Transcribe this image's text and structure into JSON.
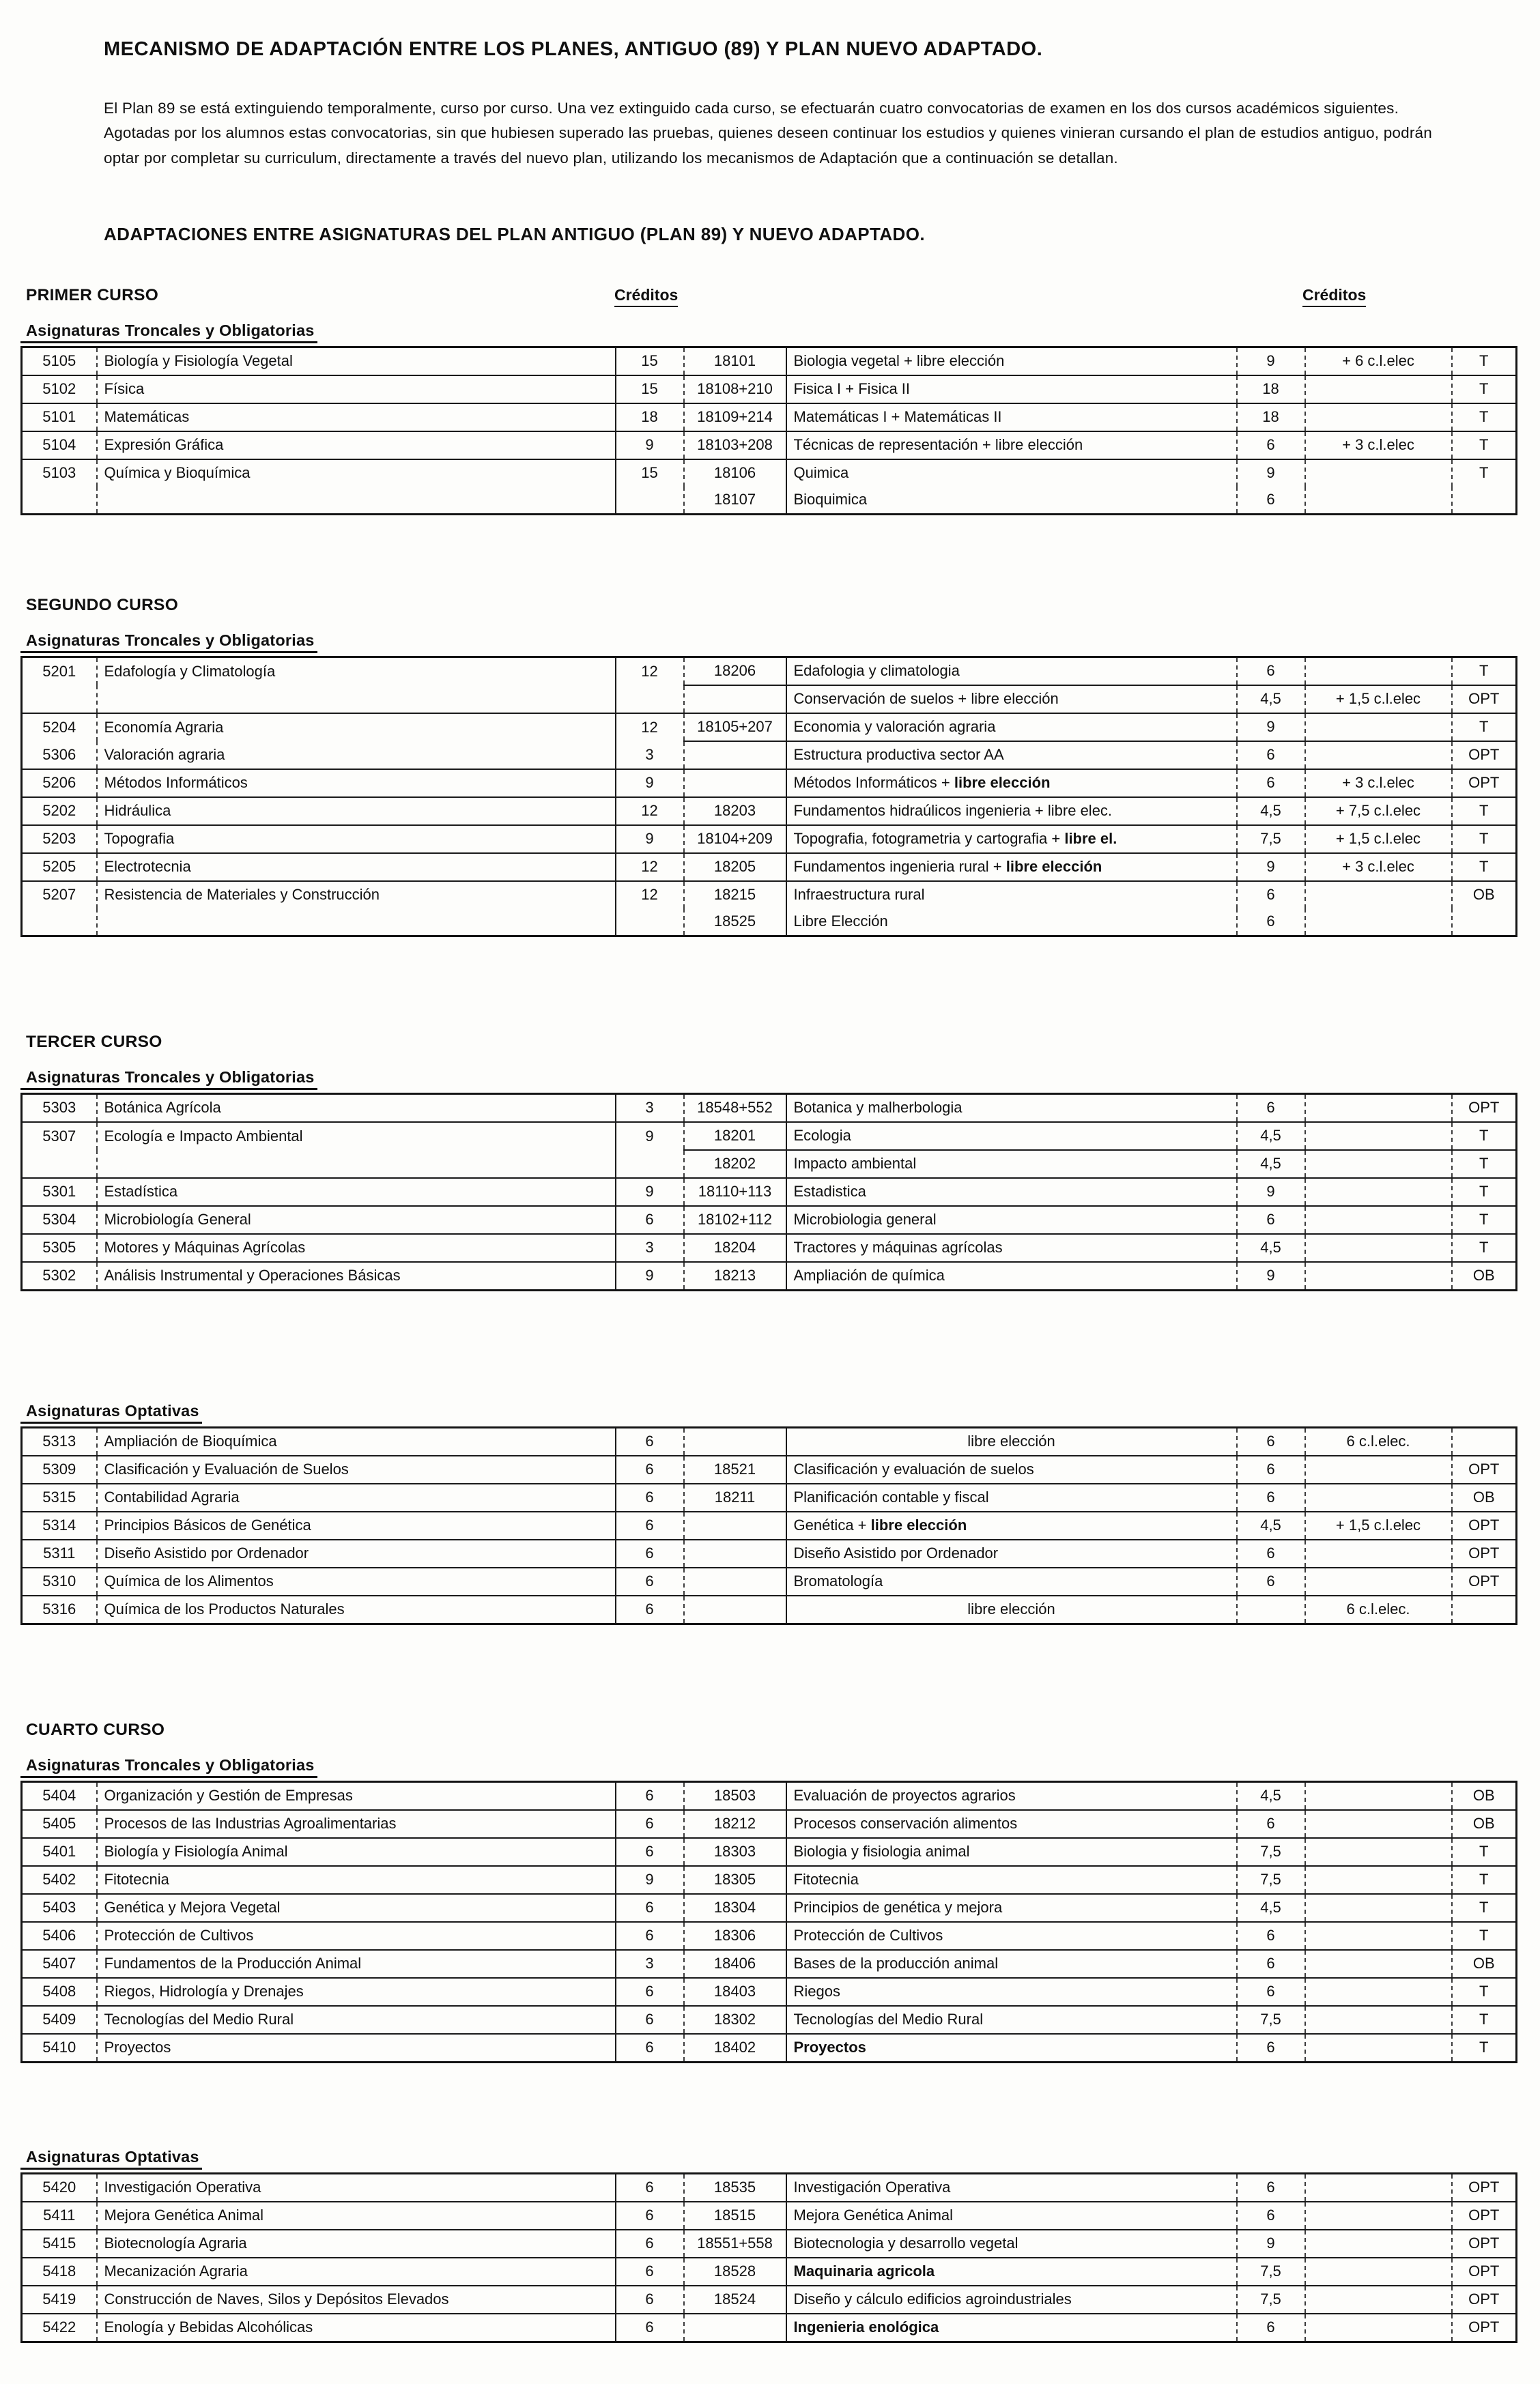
{
  "title": "MECANISMO DE ADAPTACIÓN ENTRE LOS PLANES, ANTIGUO (89) Y PLAN NUEVO ADAPTADO.",
  "intro": "El Plan 89 se está extinguiendo temporalmente, curso por curso. Una vez extinguido cada curso, se efectuarán cuatro convocatorias de examen en los dos cursos académicos siguientes. Agotadas por los alumnos estas convocatorias, sin que hubiesen superado las pruebas, quienes deseen continuar los estudios y quienes vinieran cursando el plan de estudios antiguo, podrán optar  por completar su curriculum, directamente a través del nuevo plan, utilizando los mecanismos de Adaptación que a continuación se detallan.",
  "subtitle": "ADAPTACIONES ENTRE ASIGNATURAS DEL PLAN ANTIGUO (PLAN 89) Y NUEVO ADAPTADO.",
  "credits_header": "Créditos",
  "sections": [
    {
      "heading": "PRIMER CURSO",
      "subheading": "Asignaturas Troncales y Obligatorias",
      "show_credits": true,
      "margin_top": 0,
      "rows": [
        {
          "c": "5105",
          "o": "Biología y Fisiología Vegetal",
          "ocr": "15",
          "nc": "18101",
          "n": "Biologia vegetal  + libre elección",
          "ncr": "9",
          "ex": "+ 6 c.l.elec",
          "t": "T"
        },
        {
          "c": "5102",
          "o": "Física",
          "ocr": "15",
          "nc": "18108+210",
          "n": "Fisica I  +  Fisica II",
          "ncr": "18",
          "ex": "",
          "t": "T"
        },
        {
          "c": "5101",
          "o": "Matemáticas",
          "ocr": "18",
          "nc": "18109+214",
          "n": "Matemáticas I  +  Matemáticas II",
          "ncr": "18",
          "ex": "",
          "t": "T"
        },
        {
          "c": "5104",
          "o": "Expresión Gráfica",
          "ocr": "9",
          "nc": "18103+208",
          "n": "Técnicas de representación + libre elección",
          "ncr": "6",
          "ex": "+ 3 c.l.elec",
          "t": "T"
        },
        {
          "c": "5103",
          "o": "Química y Bioquímica",
          "ocr": "15",
          "nc": "18106",
          "n": "Quimica",
          "ncr": "9",
          "ex": "",
          "t": "T"
        },
        {
          "c": "",
          "o": "",
          "ocr": "",
          "nc": "18107",
          "n": "Bioquimica",
          "ncr": "6",
          "ex": "",
          "t": "",
          "lt": false,
          "rt": false
        }
      ]
    },
    {
      "heading": "SEGUNDO CURSO",
      "subheading": "Asignaturas Troncales y Obligatorias",
      "show_credits": false,
      "margin_top": 118,
      "rows": [
        {
          "c": "5201",
          "o": "Edafología y Climatología",
          "ocr": "12",
          "nc": "18206",
          "n": "Edafologia y climatologia",
          "ncr": "6",
          "ex": "",
          "t": "T"
        },
        {
          "c": "",
          "o": "",
          "ocr": "",
          "nc": "",
          "n": "Conservación de suelos + libre elección",
          "ncr": "4,5",
          "ex": "+ 1,5 c.l.elec",
          "t": "OPT",
          "lt": false
        },
        {
          "c": "5204",
          "o": "Economía Agraria",
          "ocr": "12",
          "nc": "18105+207",
          "n": "Economia y valoración agraria",
          "ncr": "9",
          "ex": "",
          "t": "T"
        },
        {
          "c": "5306",
          "o": "Valoración agraria",
          "ocr": "3",
          "nc": "",
          "n": "Estructura productiva sector AA",
          "ncr": "6",
          "ex": "",
          "t": "OPT",
          "lt": false
        },
        {
          "c": "5206",
          "o": "Métodos Informáticos",
          "ocr": "9",
          "nc": "",
          "n": "Métodos Informáticos + ",
          "nb": "libre elección",
          "ncr": "6",
          "ex": "+ 3 c.l.elec",
          "t": "OPT"
        },
        {
          "c": "5202",
          "o": "Hidráulica",
          "ocr": "12",
          "nc": "18203",
          "n": "Fundamentos hidraúlicos ingenieria + libre elec.",
          "ncr": "4,5",
          "ex": "+ 7,5 c.l.elec",
          "t": "T"
        },
        {
          "c": "5203",
          "o": "Topografia",
          "ocr": "9",
          "nc": "18104+209",
          "n": "Topografia, fotogrametria y cartografia + ",
          "nb": "libre el.",
          "ncr": "7,5",
          "ex": "+ 1,5 c.l.elec",
          "t": "T"
        },
        {
          "c": "5205",
          "o": "Electrotecnia",
          "ocr": "12",
          "nc": "18205",
          "n": "Fundamentos ingenieria rural + ",
          "nb": "libre elección",
          "ncr": "9",
          "ex": "+ 3 c.l.elec",
          "t": "T"
        },
        {
          "c": "5207",
          "o": "Resistencia de Materiales y Construcción",
          "ocr": "12",
          "nc": "18215",
          "n": "Infraestructura rural",
          "ncr": "6",
          "ex": "",
          "t": "OB"
        },
        {
          "c": "",
          "o": "",
          "ocr": "",
          "nc": "18525",
          "n": "Libre Elección",
          "ncr": "6",
          "ex": "",
          "t": "",
          "lt": false,
          "rt": false
        }
      ]
    },
    {
      "heading": "TERCER CURSO",
      "subheading": "Asignaturas Troncales y Obligatorias",
      "show_credits": false,
      "margin_top": 140,
      "rows": [
        {
          "c": "5303",
          "o": "Botánica Agrícola",
          "ocr": "3",
          "nc": "18548+552",
          "n": "Botanica y malherbologia",
          "ncr": "6",
          "ex": "",
          "t": "OPT"
        },
        {
          "c": "5307",
          "o": "Ecología e Impacto Ambiental",
          "ocr": "9",
          "nc": "18201",
          "n": "Ecologia",
          "ncr": "4,5",
          "ex": "",
          "t": "T"
        },
        {
          "c": "",
          "o": "",
          "ocr": "",
          "nc": "18202",
          "n": "Impacto ambiental",
          "ncr": "4,5",
          "ex": "",
          "t": "T",
          "lt": false
        },
        {
          "c": "5301",
          "o": "Estadística",
          "ocr": "9",
          "nc": "18110+113",
          "n": "Estadistica",
          "ncr": "9",
          "ex": "",
          "t": "T"
        },
        {
          "c": "5304",
          "o": "Microbiología General",
          "ocr": "6",
          "nc": "18102+112",
          "n": "Microbiologia general",
          "ncr": "6",
          "ex": "",
          "t": "T"
        },
        {
          "c": "5305",
          "o": "Motores y Máquinas Agrícolas",
          "ocr": "3",
          "nc": "18204",
          "n": "Tractores y máquinas agrícolas",
          "ncr": "4,5",
          "ex": "",
          "t": "T"
        },
        {
          "c": "5302",
          "o": "Análisis Instrumental y Operaciones Básicas",
          "ocr": "9",
          "nc": "18213",
          "n": "Ampliación de química",
          "ncr": "9",
          "ex": "",
          "t": "OB"
        }
      ]
    },
    {
      "heading": "",
      "subheading": "Asignaturas Optativas",
      "show_credits": false,
      "margin_top": 150,
      "rows": [
        {
          "c": "5313",
          "o": "Ampliación de Bioquímica",
          "ocr": "6",
          "nc": "",
          "n": "libre elección",
          "center": true,
          "ncr": "6",
          "ex": "6 c.l.elec.",
          "t": ""
        },
        {
          "c": "5309",
          "o": "Clasificación y Evaluación de Suelos",
          "ocr": "6",
          "nc": "18521",
          "n": "Clasificación y evaluación de suelos",
          "ncr": "6",
          "ex": "",
          "t": "OPT"
        },
        {
          "c": "5315",
          "o": "Contabilidad Agraria",
          "ocr": "6",
          "nc": "18211",
          "n": "Planificación contable y fiscal",
          "ncr": "6",
          "ex": "",
          "t": "OB"
        },
        {
          "c": "5314",
          "o": "Principios Básicos de Genética",
          "ocr": "6",
          "nc": "",
          "n": "Genética + ",
          "nb": "libre elección",
          "ncr": "4,5",
          "ex": "+ 1,5 c.l.elec",
          "t": "OPT"
        },
        {
          "c": "5311",
          "o": "Diseño Asistido por Ordenador",
          "ocr": "6",
          "nc": "",
          "n": "Diseño Asistido por Ordenador",
          "ncr": "6",
          "ex": "",
          "t": "OPT"
        },
        {
          "c": "5310",
          "o": "Química de los Alimentos",
          "ocr": "6",
          "nc": "",
          "n": "Bromatología",
          "ncr": "6",
          "ex": "",
          "t": "OPT"
        },
        {
          "c": "5316",
          "o": "Química de los Productos Naturales",
          "ocr": "6",
          "nc": "",
          "n": "libre elección",
          "center": true,
          "ncr": "",
          "ex": "6 c.l.elec.",
          "t": ""
        }
      ]
    },
    {
      "heading": "CUARTO CURSO",
      "subheading": "Asignaturas Troncales y Obligatorias",
      "show_credits": false,
      "margin_top": 140,
      "rows": [
        {
          "c": "5404",
          "o": "Organización y Gestión de Empresas",
          "ocr": "6",
          "nc": "18503",
          "n": "Evaluación de proyectos agrarios",
          "ncr": "4,5",
          "ex": "",
          "t": "OB"
        },
        {
          "c": "5405",
          "o": "Procesos de las Industrias Agroalimentarias",
          "ocr": "6",
          "nc": "18212",
          "n": "Procesos conservación alimentos",
          "ncr": "6",
          "ex": "",
          "t": "OB"
        },
        {
          "c": "5401",
          "o": "Biología y Fisiología Animal",
          "ocr": "6",
          "nc": "18303",
          "n": "Biologia y fisiologia animal",
          "ncr": "7,5",
          "ex": "",
          "t": "T"
        },
        {
          "c": "5402",
          "o": "Fitotecnia",
          "ocr": "9",
          "nc": "18305",
          "n": "Fitotecnia",
          "ncr": "7,5",
          "ex": "",
          "t": "T"
        },
        {
          "c": "5403",
          "o": "Genética y Mejora Vegetal",
          "ocr": "6",
          "nc": "18304",
          "n": "Principios de genética y mejora",
          "ncr": "4,5",
          "ex": "",
          "t": "T"
        },
        {
          "c": "5406",
          "o": "Protección de Cultivos",
          "ocr": "6",
          "nc": "18306",
          "n": "Protección de Cultivos",
          "ncr": "6",
          "ex": "",
          "t": "T"
        },
        {
          "c": "5407",
          "o": "Fundamentos de la Producción Animal",
          "ocr": "3",
          "nc": "18406",
          "n": "Bases de la producción animal",
          "ncr": "6",
          "ex": "",
          "t": "OB"
        },
        {
          "c": "5408",
          "o": "Riegos, Hidrología y Drenajes",
          "ocr": "6",
          "nc": "18403",
          "n": "Riegos",
          "ncr": "6",
          "ex": "",
          "t": "T"
        },
        {
          "c": "5409",
          "o": "Tecnologías del Medio Rural",
          "ocr": "6",
          "nc": "18302",
          "n": "Tecnologías del Medio Rural",
          "ncr": "7,5",
          "ex": "",
          "t": "T"
        },
        {
          "c": "5410",
          "o": "Proyectos",
          "ocr": "6",
          "nc": "18402",
          "n": "",
          "nb": "Proyectos",
          "ncr": "6",
          "ex": "",
          "t": "T"
        }
      ]
    },
    {
      "heading": "",
      "subheading": "Asignaturas Optativas",
      "show_credits": false,
      "margin_top": 112,
      "rows": [
        {
          "c": "5420",
          "o": "Investigación Operativa",
          "ocr": "6",
          "nc": "18535",
          "n": "Investigación Operativa",
          "ncr": "6",
          "ex": "",
          "t": "OPT"
        },
        {
          "c": "5411",
          "o": "Mejora Genética Animal",
          "ocr": "6",
          "nc": "18515",
          "n": "Mejora Genética Animal",
          "ncr": "6",
          "ex": "",
          "t": "OPT"
        },
        {
          "c": "5415",
          "o": "Biotecnología Agraria",
          "ocr": "6",
          "nc": "18551+558",
          "n": "Biotecnologia y desarrollo vegetal",
          "ncr": "9",
          "ex": "",
          "t": "OPT"
        },
        {
          "c": "5418",
          "o": "Mecanización Agraria",
          "ocr": "6",
          "nc": "18528",
          "n": "",
          "nb": "Maquinaria agricola",
          "ncr": "7,5",
          "ex": "",
          "t": "OPT"
        },
        {
          "c": "5419",
          "o": "Construcción de Naves, Silos y Depósitos Elevados",
          "ocr": "6",
          "nc": "18524",
          "n": "Diseño y cálculo edificios agroindustriales",
          "ncr": "7,5",
          "ex": "",
          "t": "OPT"
        },
        {
          "c": "5422",
          "o": "Enología y Bebidas Alcohólicas",
          "ocr": "6",
          "nc": "",
          "n": "",
          "nb": "Ingenieria enológica",
          "ncr": "6",
          "ex": "",
          "t": "OPT"
        }
      ]
    }
  ]
}
